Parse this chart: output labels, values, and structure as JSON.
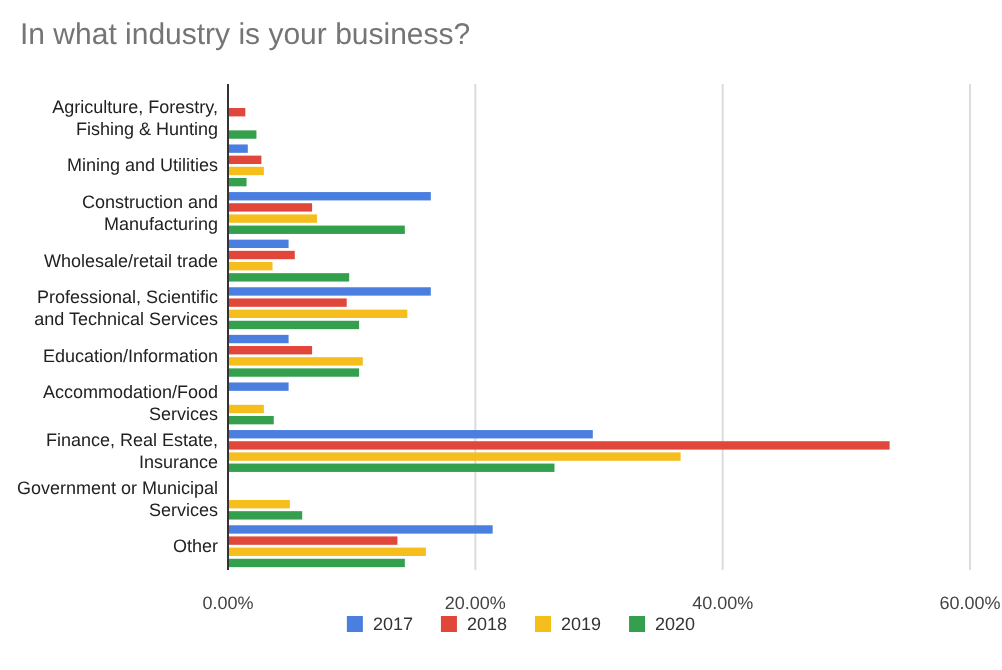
{
  "chart_data": {
    "type": "bar",
    "orientation": "horizontal",
    "title": "In what industry is your business?",
    "categories": [
      "Agriculture, Forestry, Fishing & Hunting",
      "Mining and Utilities",
      "Construction and Manufacturing",
      "Wholesale/retail trade",
      "Professional, Scientific and Technical Services",
      "Education/Information",
      "Accommodation/Food Services",
      "Finance, Real Estate, Insurance",
      "Government or Municipal Services",
      "Other"
    ],
    "series": [
      {
        "name": "2017",
        "color": "#4a7fe0",
        "values": [
          null,
          1.6,
          16.4,
          4.9,
          16.4,
          4.9,
          4.9,
          29.5,
          null,
          21.4
        ]
      },
      {
        "name": "2018",
        "color": "#e0473a",
        "values": [
          1.4,
          2.7,
          6.8,
          5.4,
          9.6,
          6.8,
          null,
          53.5,
          null,
          13.7
        ]
      },
      {
        "name": "2019",
        "color": "#f5be1c",
        "values": [
          null,
          2.9,
          7.2,
          3.6,
          14.5,
          10.9,
          2.9,
          36.6,
          5.0,
          16.0
        ]
      },
      {
        "name": "2020",
        "color": "#34a04e",
        "values": [
          2.3,
          1.5,
          14.3,
          9.8,
          10.6,
          10.6,
          3.7,
          26.4,
          6.0,
          14.3
        ]
      }
    ],
    "xlim": [
      0,
      60
    ],
    "xticks": [
      {
        "value": 0,
        "label": "0.00%"
      },
      {
        "value": 20,
        "label": "20.00%"
      },
      {
        "value": 40,
        "label": "40.00%"
      },
      {
        "value": 60,
        "label": "60.00%"
      }
    ],
    "grid": "x",
    "legend": "bottom"
  }
}
